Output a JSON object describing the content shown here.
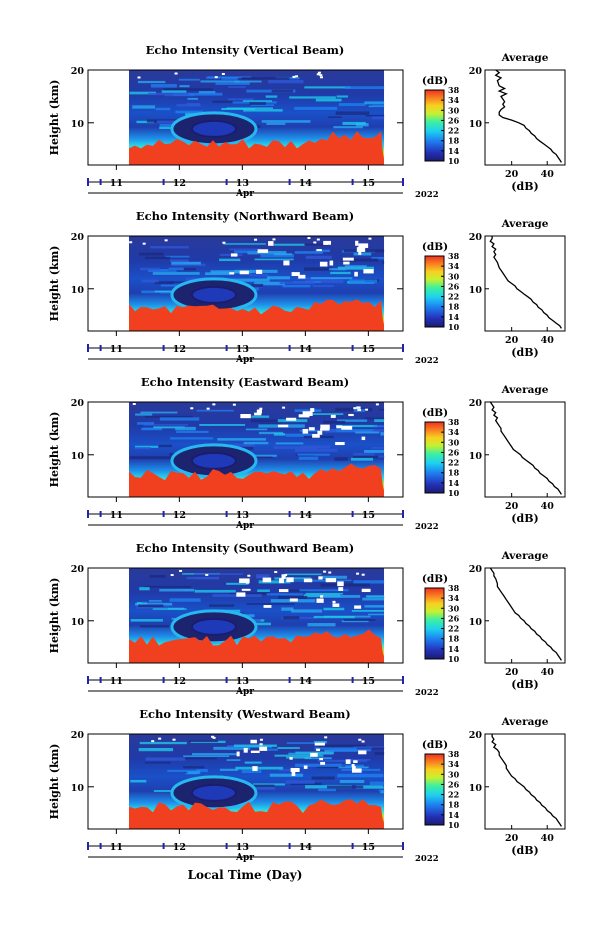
{
  "figure": {
    "xlabel": "Local Time (Day)"
  },
  "chart_data": [
    {
      "type": "heatmap",
      "title": "Echo Intensity (Vertical Beam)",
      "ylabel": "Height (km)",
      "x_ticks": [
        "11",
        "12",
        "13",
        "14",
        "15"
      ],
      "x_month": "Apr",
      "x_year": "2022",
      "y_ticks": [
        "20",
        "10"
      ],
      "ylim": [
        2,
        20
      ],
      "xlim": [
        10.55,
        15.55
      ],
      "data_x_range": [
        11.2,
        15.25
      ],
      "colorbar": {
        "unit": "(dB)",
        "ticks": [
          "38",
          "34",
          "30",
          "26",
          "22",
          "18",
          "14",
          "10"
        ],
        "range": [
          10,
          38
        ]
      },
      "avg_profile": {
        "title": "Average",
        "xlabel": "(dB)",
        "x_ticks": [
          "20",
          "40"
        ],
        "xlim": [
          5,
          50
        ],
        "ylim": [
          2,
          20
        ],
        "points": [
          [
            11,
            20
          ],
          [
            13,
            19.5
          ],
          [
            11,
            19
          ],
          [
            14,
            18.5
          ],
          [
            12,
            18
          ],
          [
            13,
            17
          ],
          [
            16,
            16.5
          ],
          [
            13,
            16
          ],
          [
            17,
            15.5
          ],
          [
            14,
            15
          ],
          [
            15,
            14.5
          ],
          [
            16,
            14
          ],
          [
            15,
            13.5
          ],
          [
            16,
            13
          ],
          [
            14,
            12.5
          ],
          [
            13,
            12
          ],
          [
            13,
            11.5
          ],
          [
            15,
            11
          ],
          [
            20,
            10.5
          ],
          [
            24,
            10
          ],
          [
            27,
            9.5
          ],
          [
            28,
            9
          ],
          [
            30,
            8.5
          ],
          [
            31,
            8
          ],
          [
            33,
            7.5
          ],
          [
            34,
            7
          ],
          [
            36,
            6.5
          ],
          [
            38,
            6
          ],
          [
            40,
            5.5
          ],
          [
            42,
            5
          ],
          [
            43,
            4.5
          ],
          [
            45,
            4
          ],
          [
            46,
            3.5
          ],
          [
            47,
            3
          ],
          [
            48,
            2.5
          ]
        ]
      }
    },
    {
      "type": "heatmap",
      "title": "Echo Intensity (Northward Beam)",
      "ylabel": "Height (km)",
      "x_ticks": [
        "11",
        "12",
        "13",
        "14",
        "15"
      ],
      "x_month": "Apr",
      "x_year": "2022",
      "y_ticks": [
        "20",
        "10"
      ],
      "ylim": [
        2,
        20
      ],
      "xlim": [
        10.55,
        15.55
      ],
      "data_x_range": [
        11.2,
        15.25
      ],
      "colorbar": {
        "unit": "(dB)",
        "ticks": [
          "38",
          "34",
          "30",
          "26",
          "22",
          "18",
          "14",
          "10"
        ],
        "range": [
          10,
          38
        ]
      },
      "avg_profile": {
        "title": "Average",
        "xlabel": "(dB)",
        "x_ticks": [
          "20",
          "40"
        ],
        "xlim": [
          5,
          50
        ],
        "ylim": [
          2,
          20
        ],
        "points": [
          [
            9,
            20
          ],
          [
            9,
            19.5
          ],
          [
            8,
            19
          ],
          [
            10,
            18.5
          ],
          [
            9,
            18
          ],
          [
            11,
            17.5
          ],
          [
            10,
            17
          ],
          [
            11,
            16.5
          ],
          [
            10,
            16
          ],
          [
            11,
            15.5
          ],
          [
            12,
            15
          ],
          [
            13,
            14
          ],
          [
            14,
            13.5
          ],
          [
            15,
            13
          ],
          [
            16,
            12.5
          ],
          [
            17,
            12
          ],
          [
            18,
            11.5
          ],
          [
            20,
            11
          ],
          [
            22,
            10.5
          ],
          [
            23,
            10
          ],
          [
            25,
            9.5
          ],
          [
            27,
            9
          ],
          [
            29,
            8.5
          ],
          [
            31,
            8
          ],
          [
            32,
            7.5
          ],
          [
            34,
            7
          ],
          [
            35,
            6.5
          ],
          [
            37,
            6
          ],
          [
            38,
            5.5
          ],
          [
            40,
            5
          ],
          [
            41,
            4.5
          ],
          [
            43,
            4
          ],
          [
            45,
            3.5
          ],
          [
            47,
            3
          ],
          [
            48,
            2.5
          ]
        ]
      }
    },
    {
      "type": "heatmap",
      "title": "Echo Intensity (Eastward Beam)",
      "ylabel": "Height (km)",
      "x_ticks": [
        "11",
        "12",
        "13",
        "14",
        "15"
      ],
      "x_month": "Apr",
      "x_year": "2022",
      "y_ticks": [
        "20",
        "10"
      ],
      "ylim": [
        2,
        20
      ],
      "xlim": [
        10.55,
        15.55
      ],
      "data_x_range": [
        11.2,
        15.25
      ],
      "colorbar": {
        "unit": "(dB)",
        "ticks": [
          "38",
          "34",
          "30",
          "26",
          "22",
          "18",
          "14",
          "10"
        ],
        "range": [
          10,
          38
        ]
      },
      "avg_profile": {
        "title": "Average",
        "xlabel": "(dB)",
        "x_ticks": [
          "20",
          "40"
        ],
        "xlim": [
          5,
          50
        ],
        "ylim": [
          2,
          20
        ],
        "points": [
          [
            8,
            20
          ],
          [
            9,
            19.5
          ],
          [
            10,
            19
          ],
          [
            9,
            18.5
          ],
          [
            11,
            18
          ],
          [
            10,
            17.5
          ],
          [
            12,
            17
          ],
          [
            11,
            16.5
          ],
          [
            12,
            16
          ],
          [
            13,
            15.5
          ],
          [
            14,
            15
          ],
          [
            14,
            14.5
          ],
          [
            15,
            14
          ],
          [
            16,
            13.5
          ],
          [
            17,
            13
          ],
          [
            18,
            12.5
          ],
          [
            19,
            12
          ],
          [
            20,
            11.5
          ],
          [
            21,
            11
          ],
          [
            23,
            10.5
          ],
          [
            25,
            10
          ],
          [
            26,
            9.5
          ],
          [
            28,
            9
          ],
          [
            30,
            8.5
          ],
          [
            32,
            8
          ],
          [
            33,
            7.5
          ],
          [
            35,
            7
          ],
          [
            36,
            6.5
          ],
          [
            38,
            6
          ],
          [
            40,
            5.5
          ],
          [
            41,
            5
          ],
          [
            43,
            4.5
          ],
          [
            44,
            4
          ],
          [
            46,
            3.5
          ],
          [
            47,
            3
          ],
          [
            48,
            2.5
          ]
        ]
      }
    },
    {
      "type": "heatmap",
      "title": "Echo Intensity (Southward Beam)",
      "ylabel": "Height (km)",
      "x_ticks": [
        "11",
        "12",
        "13",
        "14",
        "15"
      ],
      "x_month": "Apr",
      "x_year": "2022",
      "y_ticks": [
        "20",
        "10"
      ],
      "ylim": [
        2,
        20
      ],
      "xlim": [
        10.55,
        15.55
      ],
      "data_x_range": [
        11.2,
        15.25
      ],
      "colorbar": {
        "unit": "(dB)",
        "ticks": [
          "38",
          "34",
          "30",
          "26",
          "22",
          "18",
          "14",
          "10"
        ],
        "range": [
          10,
          38
        ]
      },
      "avg_profile": {
        "title": "Average",
        "xlabel": "(dB)",
        "x_ticks": [
          "20",
          "40"
        ],
        "xlim": [
          5,
          50
        ],
        "ylim": [
          2,
          20
        ],
        "points": [
          [
            8,
            20
          ],
          [
            9,
            19.5
          ],
          [
            10,
            19
          ],
          [
            10,
            18.5
          ],
          [
            11,
            18
          ],
          [
            12,
            17
          ],
          [
            12,
            16.5
          ],
          [
            13,
            16
          ],
          [
            14,
            15.5
          ],
          [
            15,
            15
          ],
          [
            16,
            14.5
          ],
          [
            17,
            14
          ],
          [
            18,
            13.5
          ],
          [
            19,
            13
          ],
          [
            20,
            12.5
          ],
          [
            21,
            12
          ],
          [
            22,
            11.5
          ],
          [
            24,
            11
          ],
          [
            25,
            10.5
          ],
          [
            27,
            10
          ],
          [
            28,
            9.5
          ],
          [
            30,
            9
          ],
          [
            31,
            8.5
          ],
          [
            33,
            8
          ],
          [
            34,
            7.5
          ],
          [
            36,
            7
          ],
          [
            37,
            6.5
          ],
          [
            39,
            6
          ],
          [
            40,
            5.5
          ],
          [
            42,
            5
          ],
          [
            43,
            4.5
          ],
          [
            45,
            4
          ],
          [
            46,
            3.5
          ],
          [
            47,
            3
          ],
          [
            48,
            2.5
          ]
        ]
      }
    },
    {
      "type": "heatmap",
      "title": "Echo Intensity (Westward Beam)",
      "ylabel": "Height (km)",
      "x_ticks": [
        "11",
        "12",
        "13",
        "14",
        "15"
      ],
      "x_month": "Apr",
      "x_year": "2022",
      "y_ticks": [
        "20",
        "10"
      ],
      "ylim": [
        2,
        20
      ],
      "xlim": [
        10.55,
        15.55
      ],
      "data_x_range": [
        11.2,
        15.25
      ],
      "colorbar": {
        "unit": "(dB)",
        "ticks": [
          "38",
          "34",
          "30",
          "26",
          "22",
          "18",
          "14",
          "10"
        ],
        "range": [
          10,
          38
        ]
      },
      "avg_profile": {
        "title": "Average",
        "xlabel": "(dB)",
        "x_ticks": [
          "20",
          "40"
        ],
        "xlim": [
          5,
          50
        ],
        "ylim": [
          2,
          20
        ],
        "points": [
          [
            9,
            20
          ],
          [
            9,
            19.5
          ],
          [
            10,
            19
          ],
          [
            9,
            18.5
          ],
          [
            11,
            18
          ],
          [
            10,
            17.5
          ],
          [
            12,
            17
          ],
          [
            13,
            16.5
          ],
          [
            13,
            16
          ],
          [
            14,
            15.5
          ],
          [
            15,
            15
          ],
          [
            16,
            14.5
          ],
          [
            17,
            14
          ],
          [
            17,
            13.5
          ],
          [
            18,
            13
          ],
          [
            19,
            12.5
          ],
          [
            20,
            12
          ],
          [
            22,
            11.5
          ],
          [
            23,
            11
          ],
          [
            25,
            10.5
          ],
          [
            27,
            10
          ],
          [
            28,
            9.5
          ],
          [
            30,
            9
          ],
          [
            31,
            8.5
          ],
          [
            33,
            8
          ],
          [
            34,
            7.5
          ],
          [
            36,
            7
          ],
          [
            37,
            6.5
          ],
          [
            39,
            6
          ],
          [
            40,
            5.5
          ],
          [
            42,
            5
          ],
          [
            43,
            4.5
          ],
          [
            45,
            4
          ],
          [
            46,
            3.5
          ],
          [
            47,
            3
          ],
          [
            48,
            2.5
          ]
        ]
      }
    }
  ]
}
